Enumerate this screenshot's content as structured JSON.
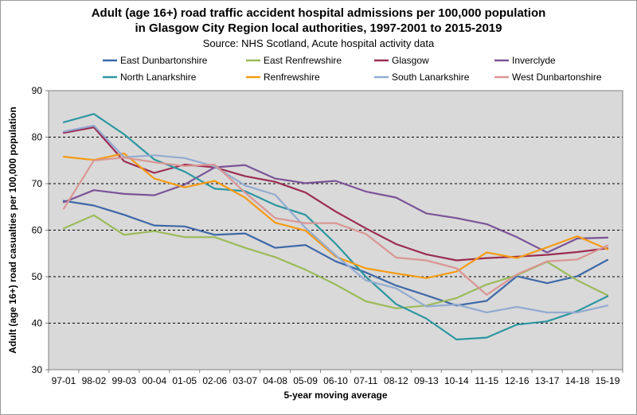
{
  "chart_data": {
    "type": "line",
    "title_line1": "Adult (age 16+) road traffic accident hospital admissions per 100,000 population",
    "title_line2": "in Glasgow City Region local authorities, 1997-2001 to 2015-2019",
    "subtitle": "Source: NHS Scotland, Acute hospital activity data",
    "xlabel": "5-year moving average",
    "ylabel": "Adult (age 16+) road casualties per 100,000 population",
    "ylim": [
      30,
      90
    ],
    "yticks": [
      30,
      40,
      50,
      60,
      70,
      80,
      90
    ],
    "grid": true,
    "legend_position": "top",
    "categories": [
      "97-01",
      "98-02",
      "99-03",
      "00-04",
      "01-05",
      "02-06",
      "03-07",
      "04-08",
      "05-09",
      "06-10",
      "07-11",
      "08-12",
      "09-13",
      "10-14",
      "11-15",
      "12-16",
      "13-17",
      "14-18",
      "15-19"
    ],
    "series": [
      {
        "name": "East Dunbartonshire",
        "color": "#3d68a8",
        "values": [
          66.3,
          65.3,
          63.3,
          61.0,
          60.8,
          59.0,
          59.3,
          56.2,
          56.8,
          53.3,
          50.9,
          48.1,
          46.0,
          43.8,
          44.8,
          50.1,
          48.6,
          50.1,
          53.6
        ]
      },
      {
        "name": "East Renfrewshire",
        "color": "#9bbb59",
        "values": [
          60.4,
          63.2,
          59.0,
          59.8,
          58.5,
          58.5,
          56.2,
          54.2,
          51.5,
          48.3,
          44.7,
          43.2,
          43.8,
          45.4,
          48.3,
          50.3,
          53.2,
          49.2,
          46.0
        ]
      },
      {
        "name": "Glasgow",
        "color": "#9b2d53",
        "values": [
          80.9,
          82.1,
          74.8,
          72.3,
          74.1,
          73.5,
          71.6,
          70.4,
          68.1,
          64.0,
          60.4,
          57.0,
          54.8,
          53.5,
          54.0,
          54.3,
          54.7,
          55.3,
          56.1
        ]
      },
      {
        "name": "Inverclyde",
        "color": "#7b5498",
        "values": [
          66.0,
          68.6,
          67.8,
          67.5,
          69.8,
          73.5,
          74.0,
          71.1,
          70.1,
          70.6,
          68.3,
          67.0,
          63.6,
          62.6,
          61.3,
          58.5,
          55.2,
          58.2,
          58.4
        ]
      },
      {
        "name": "North Lanarkshire",
        "color": "#2e97a2",
        "values": [
          83.2,
          85.0,
          80.6,
          75.2,
          72.6,
          68.9,
          68.4,
          65.4,
          63.3,
          57.1,
          50.0,
          44.1,
          41.0,
          36.5,
          36.9,
          39.7,
          40.4,
          42.6,
          45.8
        ]
      },
      {
        "name": "Renfrewshire",
        "color": "#f59b14",
        "values": [
          75.8,
          75.1,
          76.5,
          71.1,
          69.2,
          70.6,
          67.0,
          61.6,
          59.9,
          54.3,
          51.8,
          50.7,
          49.7,
          51.1,
          55.2,
          54.0,
          56.3,
          58.7,
          55.9
        ]
      },
      {
        "name": "South Lanarkshire",
        "color": "#93abd1",
        "values": [
          81.2,
          82.5,
          75.7,
          76.1,
          75.5,
          73.7,
          69.6,
          67.6,
          60.5,
          54.6,
          49.2,
          47.5,
          43.6,
          44.0,
          42.3,
          43.5,
          42.3,
          42.3,
          43.8
        ]
      },
      {
        "name": "West Dunbartonshire",
        "color": "#d99694",
        "values": [
          64.6,
          75.0,
          75.6,
          74.6,
          73.8,
          74.1,
          68.1,
          62.6,
          61.5,
          61.5,
          59.2,
          54.1,
          53.5,
          51.8,
          46.1,
          50.5,
          53.3,
          53.7,
          56.7
        ]
      }
    ]
  }
}
